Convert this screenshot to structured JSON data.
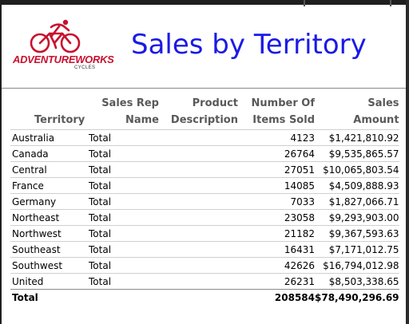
{
  "report": {
    "title": "Sales by Territory",
    "logo": {
      "brand": "ADVENTUREWORKS",
      "sub": "CYCLES"
    }
  },
  "table": {
    "headers": {
      "territory": "Territory",
      "sales_rep_line1": "Sales Rep",
      "sales_rep_line2": "Name",
      "product_line1": "Product",
      "product_line2": "Description",
      "items_line1": "Number Of",
      "items_line2": "Items Sold",
      "amount_line1": "Sales",
      "amount_line2": "Amount"
    },
    "rows": [
      {
        "territory": "Australia",
        "rep": "Total",
        "product": "",
        "items": "4123",
        "amount": "$1,421,810.92"
      },
      {
        "territory": "Canada",
        "rep": "Total",
        "product": "",
        "items": "26764",
        "amount": "$9,535,865.57"
      },
      {
        "territory": "Central",
        "rep": "Total",
        "product": "",
        "items": "27051",
        "amount": "$10,065,803.54"
      },
      {
        "territory": "France",
        "rep": "Total",
        "product": "",
        "items": "14085",
        "amount": "$4,509,888.93"
      },
      {
        "territory": "Germany",
        "rep": "Total",
        "product": "",
        "items": "7033",
        "amount": "$1,827,066.71"
      },
      {
        "territory": "Northeast",
        "rep": "Total",
        "product": "",
        "items": "23058",
        "amount": "$9,293,903.00"
      },
      {
        "territory": "Northwest",
        "rep": "Total",
        "product": "",
        "items": "21182",
        "amount": "$9,367,593.63"
      },
      {
        "territory": "Southeast",
        "rep": "Total",
        "product": "",
        "items": "16431",
        "amount": "$7,171,012.75"
      },
      {
        "territory": "Southwest",
        "rep": "Total",
        "product": "",
        "items": "42626",
        "amount": "$16,794,012.98"
      },
      {
        "territory": "United",
        "rep": "Total",
        "product": "",
        "items": "26231",
        "amount": "$8,503,338.65"
      }
    ],
    "total": {
      "label": "Total",
      "items": "208584",
      "amount": "$78,490,296.69"
    }
  }
}
